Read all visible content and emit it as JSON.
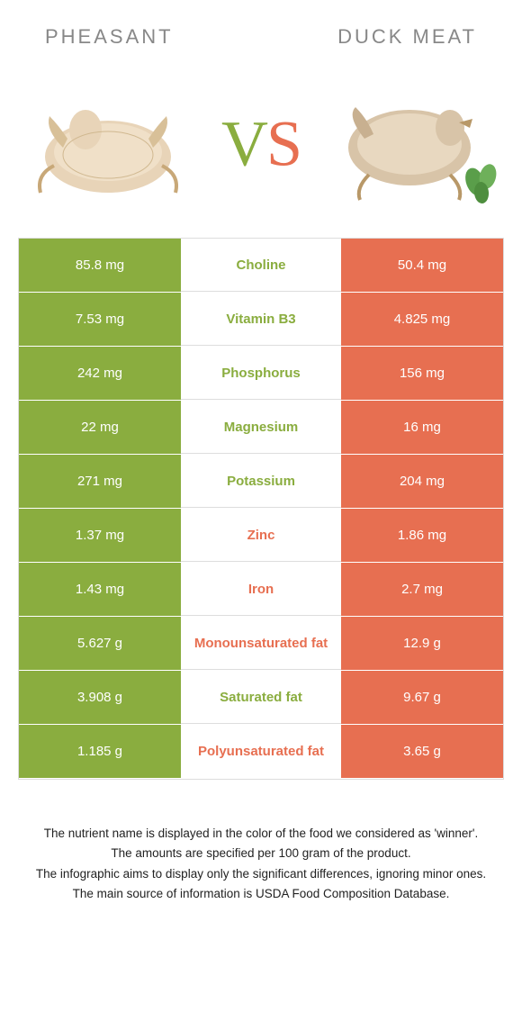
{
  "header": {
    "left_title": "PHEASANT",
    "right_title": "DUCK MEAT"
  },
  "vs": {
    "v": "V",
    "s": "S"
  },
  "colors": {
    "left": "#8aad3f",
    "right": "#e76f51",
    "border": "#dddddd",
    "text_grey": "#888888",
    "background": "#ffffff"
  },
  "table": {
    "rows": [
      {
        "left": "85.8 mg",
        "label": "Choline",
        "right": "50.4 mg",
        "winner": "left"
      },
      {
        "left": "7.53 mg",
        "label": "Vitamin B3",
        "right": "4.825 mg",
        "winner": "left"
      },
      {
        "left": "242 mg",
        "label": "Phosphorus",
        "right": "156 mg",
        "winner": "left"
      },
      {
        "left": "22 mg",
        "label": "Magnesium",
        "right": "16 mg",
        "winner": "left"
      },
      {
        "left": "271 mg",
        "label": "Potassium",
        "right": "204 mg",
        "winner": "left"
      },
      {
        "left": "1.37 mg",
        "label": "Zinc",
        "right": "1.86 mg",
        "winner": "right"
      },
      {
        "left": "1.43 mg",
        "label": "Iron",
        "right": "2.7 mg",
        "winner": "right"
      },
      {
        "left": "5.627 g",
        "label": "Monounsaturated fat",
        "right": "12.9 g",
        "winner": "right"
      },
      {
        "left": "3.908 g",
        "label": "Saturated fat",
        "right": "9.67 g",
        "winner": "left"
      },
      {
        "left": "1.185 g",
        "label": "Polyunsaturated fat",
        "right": "3.65 g",
        "winner": "right"
      }
    ]
  },
  "footer": {
    "line1": "The nutrient name is displayed in the color of the food we considered as 'winner'.",
    "line2": "The amounts are specified per 100 gram of the product.",
    "line3": "The infographic aims to display only the significant differences, ignoring minor ones.",
    "line4": "The main source of information is USDA Food Composition Database."
  }
}
